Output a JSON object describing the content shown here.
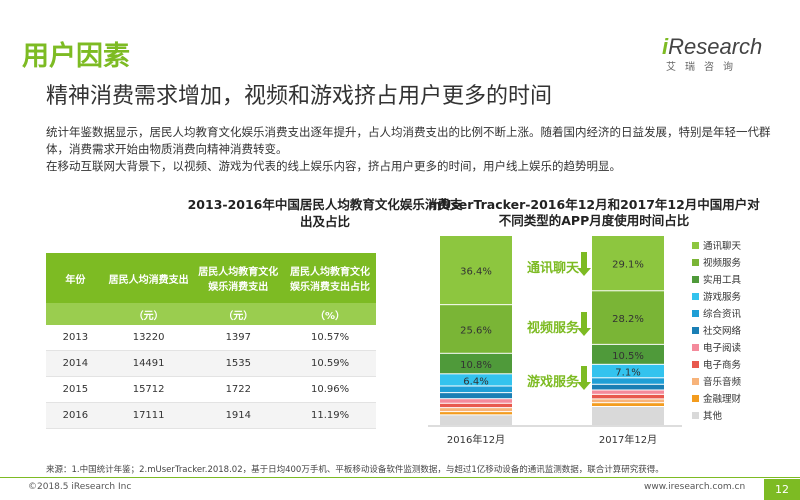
{
  "page": {
    "title": "用户因素",
    "subtitle": "精神消费需求增加，视频和游戏挤占用户更多的时间",
    "desc1": "统计年鉴数据显示，居民人均教育文化娱乐消费支出逐年提升，占人均消费支出的比例不断上涨。随着国内经济的日益发展，特别是年轻一代群体，消费需求开始由物质消费向精神消费转变。",
    "desc2": "在移动互联网大背景下，以视频、游戏为代表的线上娱乐内容，挤占用户更多的时间，用户线上娱乐的趋势明显。",
    "sources": "来源：1.中国统计年鉴；2.mUserTracker.2018.02，基于日均400万手机、平板移动设备软件监测数据，与超过1亿移动设备的通讯监测数据，联合计算研究获得。",
    "copyright": "©2018.5 iResearch Inc",
    "website": "www.iresearch.com.cn",
    "page_number": "12"
  },
  "logo": {
    "brand_i": "i",
    "brand_rest": "Research",
    "cn": "艾瑞咨询"
  },
  "colors": {
    "accent": "#7dbb23"
  },
  "chart_data": [
    {
      "type": "table",
      "title": "2013-2016年中国居民人均教育文化娱乐消费支出及占比",
      "columns": [
        "年份",
        "居民人均消费支出",
        "居民人均教育文化娱乐消费支出",
        "居民人均教育文化娱乐消费支出占比"
      ],
      "units": [
        "",
        "（元）",
        "（元）",
        "（%）"
      ],
      "rows": [
        [
          "2013",
          "13220",
          "1397",
          "10.57%"
        ],
        [
          "2014",
          "14491",
          "1535",
          "10.59%"
        ],
        [
          "2015",
          "15712",
          "1722",
          "10.96%"
        ],
        [
          "2016",
          "17111",
          "1914",
          "11.19%"
        ]
      ]
    },
    {
      "type": "bar",
      "stacked": true,
      "title": "mUserTracker-2016年12月和2017年12月中国用户对不同类型的APP月度使用时间占比",
      "categories": [
        "2016年12月",
        "2017年12月"
      ],
      "series": [
        {
          "name": "通讯聊天",
          "color": "#8dc63f",
          "values": [
            36.4,
            29.1
          ],
          "labels": [
            "36.4%",
            "29.1%"
          ]
        },
        {
          "name": "视频服务",
          "color": "#7ab536",
          "values": [
            25.6,
            28.2
          ],
          "labels": [
            "25.6%",
            "28.2%"
          ]
        },
        {
          "name": "实用工具",
          "color": "#4f9a3a",
          "values": [
            10.8,
            10.5
          ],
          "labels": [
            "10.8%",
            "10.5%"
          ]
        },
        {
          "name": "游戏服务",
          "color": "#33c3ee",
          "values": [
            6.4,
            7.1
          ],
          "labels": [
            "6.4%",
            "7.1%"
          ]
        },
        {
          "name": "综合资讯",
          "color": "#1f9fd6",
          "values": [
            3.5,
            3.4
          ],
          "labels": [
            "",
            ""
          ]
        },
        {
          "name": "社交网络",
          "color": "#1a7fb5",
          "values": [
            3.2,
            3.0
          ],
          "labels": [
            "",
            ""
          ]
        },
        {
          "name": "电子阅读",
          "color": "#f48a9b",
          "values": [
            2.4,
            2.3
          ],
          "labels": [
            "",
            ""
          ]
        },
        {
          "name": "电子商务",
          "color": "#e8584d",
          "values": [
            2.3,
            2.4
          ],
          "labels": [
            "",
            ""
          ]
        },
        {
          "name": "音乐音频",
          "color": "#f7b37a",
          "values": [
            2.1,
            2.0
          ],
          "labels": [
            "",
            ""
          ]
        },
        {
          "name": "金融理财",
          "color": "#f39c1e",
          "values": [
            1.7,
            2.0
          ],
          "labels": [
            "",
            ""
          ]
        },
        {
          "name": "其他",
          "color": "#d9d9d9",
          "values": [
            5.6,
            10.0
          ],
          "labels": [
            "",
            ""
          ]
        }
      ],
      "annotations": [
        "通讯聊天",
        "视频服务",
        "游戏服务"
      ],
      "ylim": [
        0,
        100
      ]
    }
  ]
}
